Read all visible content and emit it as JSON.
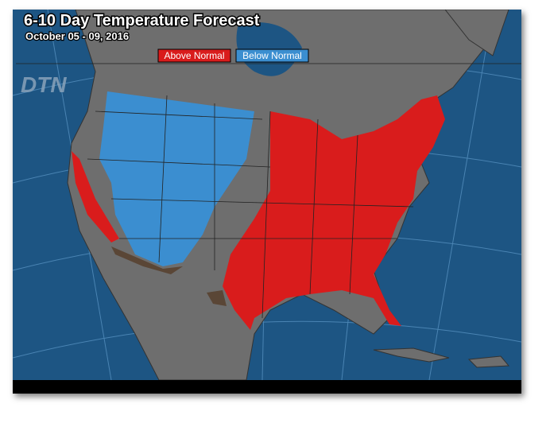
{
  "header": {
    "title": "6-10 Day Temperature Forecast",
    "subtitle": "October 05 - 09, 2016"
  },
  "legend": [
    {
      "label": "Above Normal",
      "color": "#d91c1c"
    },
    {
      "label": "Below Normal",
      "color": "#3b8ed0"
    }
  ],
  "logo": "DTN"
}
